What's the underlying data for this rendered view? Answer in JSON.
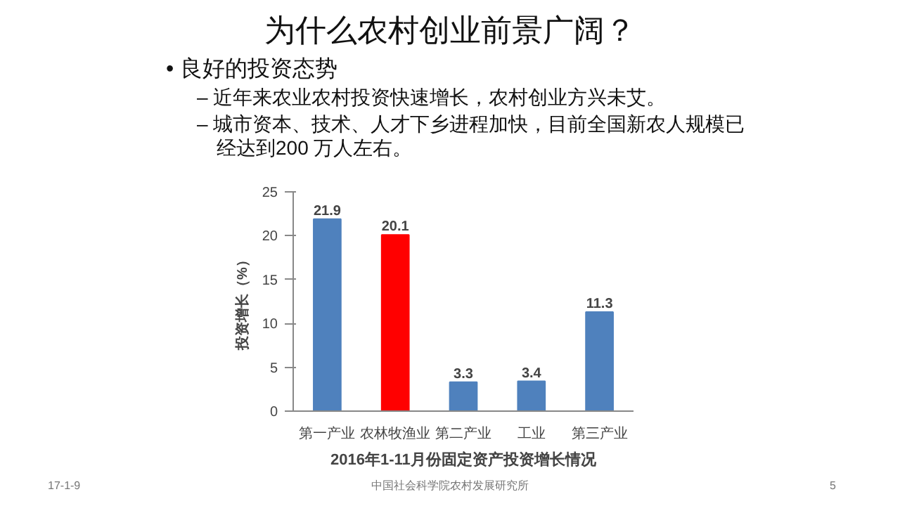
{
  "chart_data": {
    "type": "bar",
    "title": "为什么农村创业前景广阔？",
    "xlabel": "2016年1-11月份固定资产投资增长情况",
    "ylabel": "投资增长（%）",
    "categories": [
      "第一产业",
      "农林牧渔业",
      "第二产业",
      "工业",
      "第三产业"
    ],
    "values": [
      21.9,
      20.1,
      3.3,
      3.4,
      11.3
    ],
    "colors": [
      "#4f81bd",
      "#ff0000",
      "#4f81bd",
      "#4f81bd",
      "#4f81bd"
    ],
    "ylim": [
      0,
      25
    ],
    "yticks": [
      0,
      5,
      10,
      15,
      20,
      25
    ],
    "grid": false,
    "data_labels": true,
    "annotations": [
      "• 良好的投资态势",
      "– 近年来农业农村投资快速增长，农村创业方兴未艾。",
      "– 城市资本、技术、人才下乡进程加快，目前全国新农人规模已经达到200 万人左右。",
      "17-1-9",
      "中国社会科学院农村发展研究所",
      "5"
    ]
  }
}
